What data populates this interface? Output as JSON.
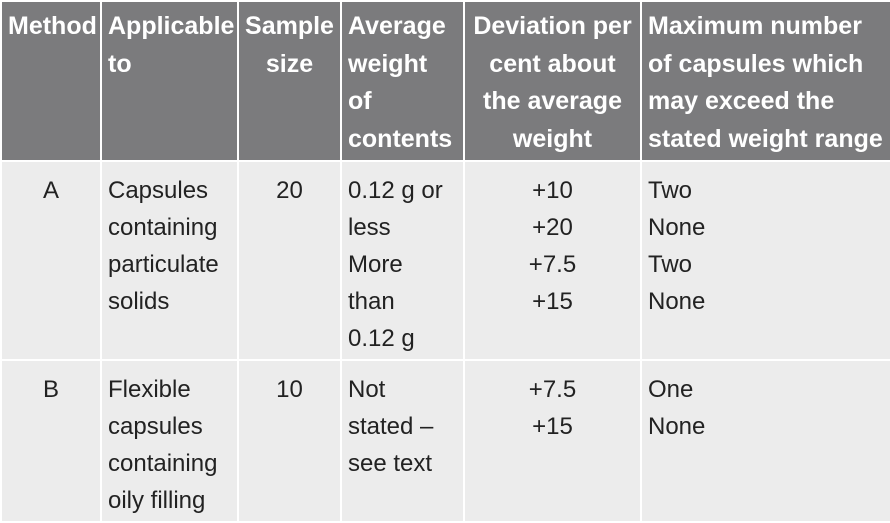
{
  "table": {
    "headers": [
      [
        "Method"
      ],
      [
        "Applicable",
        "to"
      ],
      [
        "Sample",
        "size"
      ],
      [
        "Average",
        "weight",
        "of",
        "contents"
      ],
      [
        "Deviation per",
        "cent about",
        "the average",
        "weight"
      ],
      [
        "Maximum number",
        "of capsules which",
        "may exceed the",
        "stated weight range"
      ]
    ],
    "rows": [
      {
        "method": "A",
        "applicable": [
          "Capsules",
          "containing",
          "particulate",
          "solids"
        ],
        "sample_size": "20",
        "average_weight": [
          "0.12 g or",
          "less",
          "More",
          "than",
          "0.12 g"
        ],
        "deviation": [
          "+10",
          "+20",
          "+7.5",
          "+15"
        ],
        "max_exceed": [
          "Two",
          "None",
          "Two",
          "None"
        ]
      },
      {
        "method": "B",
        "applicable": [
          "Flexible",
          "capsules",
          "containing",
          "oily filling"
        ],
        "sample_size": "10",
        "average_weight": [
          "Not",
          "stated –",
          "see text"
        ],
        "deviation": [
          "+7.5",
          "+15"
        ],
        "max_exceed": [
          "One",
          "None"
        ]
      }
    ]
  }
}
